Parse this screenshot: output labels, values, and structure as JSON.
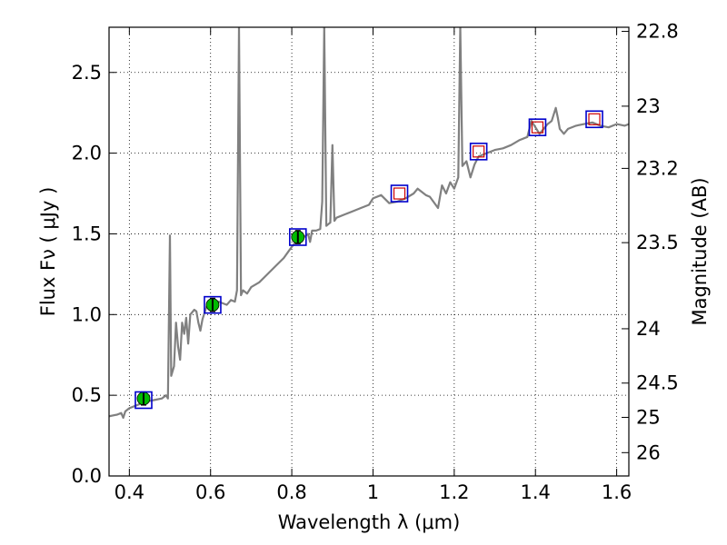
{
  "chart_data": {
    "type": "line",
    "xlabel": "Wavelength  λ (μm)",
    "ylabel": "Flux  Fν  ( μJy )",
    "y2label": "Magnitude (AB)",
    "xlim": [
      0.35,
      1.63
    ],
    "ylim": [
      0.0,
      2.78
    ],
    "grid": true,
    "colors": {
      "spectrum": "#808080",
      "measured": "#00bb00",
      "box": "#0000cc",
      "model": "#cc0000"
    },
    "x_ticks": [
      0.4,
      0.6,
      0.8,
      1.0,
      1.2,
      1.4,
      1.6
    ],
    "x_tick_labels": [
      "0.4",
      "0.6",
      "0.8",
      "1",
      "1.2",
      "1.4",
      "1.6"
    ],
    "y_ticks": [
      0.0,
      0.5,
      1.0,
      1.5,
      2.0,
      2.5
    ],
    "y_tick_labels": [
      "0.0",
      "0.5",
      "1.0",
      "1.5",
      "2.0",
      "2.5"
    ],
    "y2_ticks": [
      {
        "label": "22.8",
        "mag": 22.8
      },
      {
        "label": "23",
        "mag": 23.0
      },
      {
        "label": "23.2",
        "mag": 23.2
      },
      {
        "label": "23.5",
        "mag": 23.5
      },
      {
        "label": "24",
        "mag": 24.0
      },
      {
        "label": "24.5",
        "mag": 24.5
      },
      {
        "label": "25",
        "mag": 25.0
      },
      {
        "label": "26",
        "mag": 26.0
      }
    ],
    "spectrum": [
      [
        0.35,
        0.37
      ],
      [
        0.37,
        0.38
      ],
      [
        0.38,
        0.39
      ],
      [
        0.385,
        0.36
      ],
      [
        0.39,
        0.4
      ],
      [
        0.4,
        0.42
      ],
      [
        0.42,
        0.44
      ],
      [
        0.44,
        0.46
      ],
      [
        0.46,
        0.47
      ],
      [
        0.48,
        0.48
      ],
      [
        0.49,
        0.5
      ],
      [
        0.495,
        0.48
      ],
      [
        0.5,
        1.49
      ],
      [
        0.503,
        0.62
      ],
      [
        0.51,
        0.68
      ],
      [
        0.515,
        0.95
      ],
      [
        0.52,
        0.8
      ],
      [
        0.525,
        0.72
      ],
      [
        0.53,
        0.95
      ],
      [
        0.535,
        0.88
      ],
      [
        0.54,
        0.98
      ],
      [
        0.545,
        0.82
      ],
      [
        0.55,
        1.0
      ],
      [
        0.56,
        1.03
      ],
      [
        0.565,
        1.02
      ],
      [
        0.57,
        0.95
      ],
      [
        0.575,
        0.9
      ],
      [
        0.58,
        0.97
      ],
      [
        0.59,
        1.05
      ],
      [
        0.6,
        1.06
      ],
      [
        0.61,
        1.07
      ],
      [
        0.62,
        1.08
      ],
      [
        0.63,
        1.07
      ],
      [
        0.64,
        1.06
      ],
      [
        0.65,
        1.09
      ],
      [
        0.66,
        1.08
      ],
      [
        0.665,
        1.15
      ],
      [
        0.67,
        2.78
      ],
      [
        0.675,
        1.12
      ],
      [
        0.68,
        1.15
      ],
      [
        0.69,
        1.13
      ],
      [
        0.7,
        1.17
      ],
      [
        0.72,
        1.2
      ],
      [
        0.74,
        1.25
      ],
      [
        0.76,
        1.3
      ],
      [
        0.78,
        1.35
      ],
      [
        0.8,
        1.42
      ],
      [
        0.81,
        1.45
      ],
      [
        0.82,
        1.47
      ],
      [
        0.83,
        1.48
      ],
      [
        0.84,
        1.5
      ],
      [
        0.845,
        1.45
      ],
      [
        0.85,
        1.52
      ],
      [
        0.86,
        1.52
      ],
      [
        0.87,
        1.53
      ],
      [
        0.875,
        1.7
      ],
      [
        0.88,
        2.78
      ],
      [
        0.885,
        1.55
      ],
      [
        0.89,
        1.56
      ],
      [
        0.895,
        1.57
      ],
      [
        0.9,
        2.05
      ],
      [
        0.905,
        1.58
      ],
      [
        0.91,
        1.6
      ],
      [
        0.93,
        1.62
      ],
      [
        0.95,
        1.64
      ],
      [
        0.97,
        1.66
      ],
      [
        0.99,
        1.68
      ],
      [
        1.0,
        1.72
      ],
      [
        1.02,
        1.74
      ],
      [
        1.04,
        1.69
      ],
      [
        1.06,
        1.7
      ],
      [
        1.08,
        1.72
      ],
      [
        1.1,
        1.75
      ],
      [
        1.11,
        1.78
      ],
      [
        1.13,
        1.74
      ],
      [
        1.14,
        1.73
      ],
      [
        1.16,
        1.66
      ],
      [
        1.17,
        1.8
      ],
      [
        1.18,
        1.75
      ],
      [
        1.19,
        1.82
      ],
      [
        1.2,
        1.78
      ],
      [
        1.21,
        1.85
      ],
      [
        1.215,
        2.78
      ],
      [
        1.22,
        1.92
      ],
      [
        1.23,
        1.95
      ],
      [
        1.24,
        1.85
      ],
      [
        1.25,
        1.93
      ],
      [
        1.26,
        1.98
      ],
      [
        1.28,
        2.0
      ],
      [
        1.3,
        2.02
      ],
      [
        1.32,
        2.03
      ],
      [
        1.34,
        2.05
      ],
      [
        1.36,
        2.08
      ],
      [
        1.38,
        2.1
      ],
      [
        1.39,
        2.2
      ],
      [
        1.4,
        2.16
      ],
      [
        1.41,
        2.12
      ],
      [
        1.42,
        2.15
      ],
      [
        1.43,
        2.18
      ],
      [
        1.44,
        2.2
      ],
      [
        1.45,
        2.28
      ],
      [
        1.455,
        2.22
      ],
      [
        1.46,
        2.15
      ],
      [
        1.47,
        2.12
      ],
      [
        1.48,
        2.15
      ],
      [
        1.5,
        2.17
      ],
      [
        1.52,
        2.18
      ],
      [
        1.54,
        2.19
      ],
      [
        1.56,
        2.17
      ],
      [
        1.58,
        2.16
      ],
      [
        1.6,
        2.18
      ],
      [
        1.62,
        2.17
      ],
      [
        1.63,
        2.18
      ]
    ],
    "photometry_measured": [
      {
        "x": 0.435,
        "y": 0.48,
        "err": 0.04
      },
      {
        "x": 0.605,
        "y": 1.06,
        "err": 0.04
      },
      {
        "x": 0.815,
        "y": 1.48,
        "err": 0.04
      }
    ],
    "photometry_model": [
      {
        "x": 0.435,
        "y": 0.47
      },
      {
        "x": 0.605,
        "y": 1.06
      },
      {
        "x": 0.815,
        "y": 1.48
      },
      {
        "x": 1.065,
        "y": 1.75
      },
      {
        "x": 1.26,
        "y": 2.01
      },
      {
        "x": 1.405,
        "y": 2.16
      },
      {
        "x": 1.545,
        "y": 2.21
      }
    ]
  }
}
